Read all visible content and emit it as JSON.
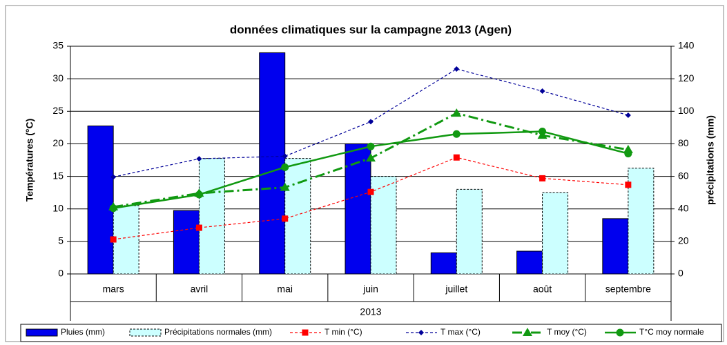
{
  "chart_data": {
    "type": "bar",
    "title": "données climatiques sur la campagne 2013 (Agen)",
    "categories": [
      "mars",
      "avril",
      "mai",
      "juin",
      "juillet",
      "août",
      "septembre"
    ],
    "x_group_label": "2013",
    "ylabel": "Températures (°C)",
    "y2label": "précipitations (mm)",
    "ylim": [
      0,
      35
    ],
    "yticks": [
      0,
      5,
      10,
      15,
      20,
      25,
      30,
      35
    ],
    "y2lim": [
      0,
      140
    ],
    "y2ticks": [
      0,
      20,
      40,
      60,
      80,
      100,
      120,
      140
    ],
    "grid": true,
    "legend": "bottom",
    "series": [
      {
        "name": "Pluies (mm)",
        "type": "bar",
        "axis": "y2",
        "color": "#0000ee",
        "border": "solid",
        "values": [
          91,
          39,
          136,
          80,
          13,
          14,
          34
        ]
      },
      {
        "name": "Précipitations normales (mm)",
        "type": "bar",
        "axis": "y2",
        "color": "#ccffff",
        "border": "dashed",
        "values": [
          42,
          71,
          71,
          60,
          52,
          50,
          65
        ]
      },
      {
        "name": "T min (°C)",
        "type": "line",
        "color": "#ff0000",
        "line_style": "dashed",
        "marker": "square",
        "values": [
          5.3,
          7.1,
          8.5,
          12.6,
          17.9,
          14.7,
          13.7
        ]
      },
      {
        "name": "T max (°C)",
        "type": "line",
        "color": "#000099",
        "line_style": "dashed",
        "marker": "diamond",
        "values": [
          14.9,
          17.7,
          18.1,
          23.4,
          31.5,
          28.1,
          24.4
        ]
      },
      {
        "name": "T moy (°C)",
        "type": "line",
        "color": "#119911",
        "line_style": "dashdot",
        "marker": "triangle",
        "values": [
          10.3,
          12.4,
          13.3,
          17.8,
          24.7,
          21.3,
          19.1
        ]
      },
      {
        "name": "T°C moy normale",
        "type": "line",
        "color": "#119911",
        "line_style": "solid",
        "marker": "circle",
        "values": [
          10.1,
          12.2,
          16.4,
          19.6,
          21.5,
          21.9,
          18.5
        ]
      }
    ]
  }
}
